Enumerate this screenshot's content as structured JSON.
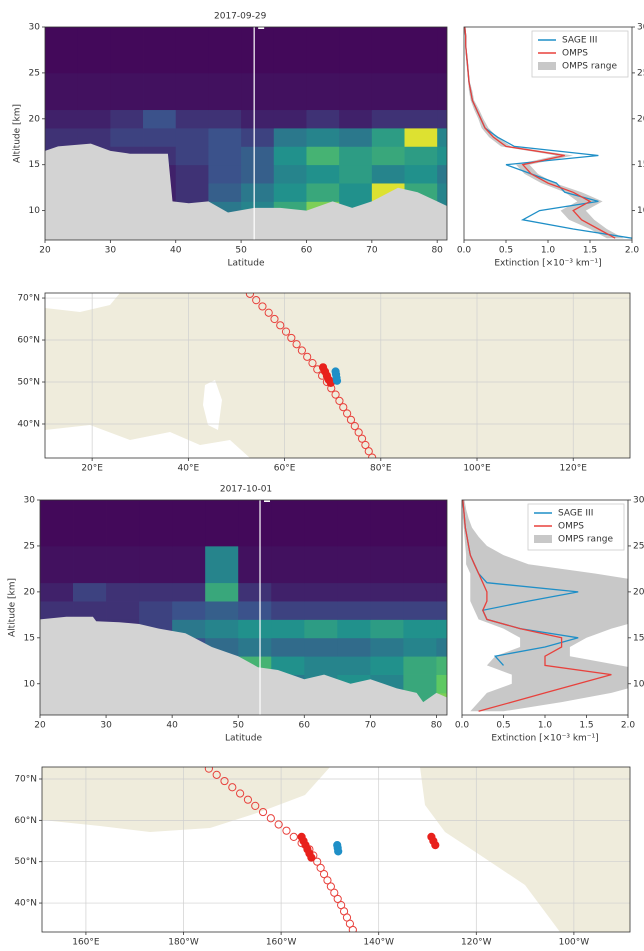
{
  "chart_data": [
    {
      "type": "heatmap",
      "title": "2017-09-29",
      "xlabel": "Latitude",
      "ylabel": "Altitude [km]",
      "xlim": [
        20,
        81.5
      ],
      "ylim": [
        6.8,
        30
      ],
      "xticks": [
        20,
        30,
        40,
        50,
        60,
        70,
        80
      ],
      "yticks": [
        10,
        15,
        20,
        25,
        30
      ],
      "colormap": "viridis",
      "zlim": [
        0,
        2
      ],
      "x_edges": [
        20,
        25,
        30,
        35,
        40,
        45,
        50,
        55,
        60,
        65,
        70,
        75,
        80,
        81.5
      ],
      "y_edges": [
        7,
        9,
        11,
        13,
        15,
        17,
        19,
        21,
        25,
        30
      ],
      "z": [
        [
          0.2,
          0.2,
          0.2,
          0.2,
          0.2,
          0.2,
          0.3,
          0.6,
          0.8,
          0.8,
          1.0,
          0.8,
          0.6
        ],
        [
          0.2,
          0.2,
          0.2,
          0.2,
          0.3,
          0.8,
          0.9,
          1.2,
          1.6,
          1.0,
          1.3,
          1.0,
          0.9
        ],
        [
          0.2,
          0.2,
          0.2,
          0.2,
          0.3,
          0.6,
          0.8,
          1.0,
          1.2,
          1.0,
          1.9,
          1.2,
          0.9
        ],
        [
          0.2,
          0.2,
          0.2,
          0.2,
          0.3,
          0.5,
          0.6,
          0.9,
          1.0,
          1.1,
          0.9,
          1.0,
          0.8
        ],
        [
          0.3,
          0.3,
          0.3,
          0.3,
          0.4,
          0.5,
          0.6,
          1.0,
          1.3,
          1.1,
          1.2,
          1.1,
          1.0
        ],
        [
          0.3,
          0.3,
          0.4,
          0.4,
          0.4,
          0.5,
          0.4,
          0.8,
          0.9,
          0.8,
          1.1,
          1.9,
          0.9
        ],
        [
          0.2,
          0.2,
          0.3,
          0.5,
          0.3,
          0.3,
          0.2,
          0.2,
          0.3,
          0.2,
          0.3,
          0.3,
          0.3
        ],
        [
          0.1,
          0.1,
          0.1,
          0.1,
          0.1,
          0.1,
          0.1,
          0.1,
          0.1,
          0.1,
          0.1,
          0.1,
          0.1
        ],
        [
          0.05,
          0.05,
          0.05,
          0.05,
          0.05,
          0.05,
          0.05,
          0.05,
          0.05,
          0.05,
          0.05,
          0.05,
          0.05
        ]
      ],
      "surface": {
        "color": "#d3d3d3",
        "lat": [
          20,
          22,
          27,
          30,
          33,
          38.8,
          39.5,
          42,
          45,
          48,
          52,
          56,
          60,
          64,
          67,
          70,
          74,
          77,
          80,
          81.5
        ],
        "alt": [
          16.5,
          17,
          17.3,
          16.5,
          16.2,
          16.2,
          11,
          10.8,
          11,
          9.8,
          10.3,
          10.3,
          10,
          11,
          10.3,
          11,
          12.5,
          12,
          11,
          10.5
        ]
      },
      "track_latitude": 52,
      "track_color": "#ffffff"
    },
    {
      "type": "profile",
      "xlabel": "Extinction [×10⁻³ km⁻¹]",
      "y_axis_side": "right",
      "legend": "upper right",
      "xlim": [
        0,
        2
      ],
      "ylim": [
        6.8,
        30
      ],
      "xticks": [
        {
          "value": 0,
          "label": "0.0"
        },
        0.5,
        {
          "value": 1,
          "label": "1.0"
        },
        1.5,
        {
          "value": 2,
          "label": "2.0"
        }
      ],
      "yticks": [
        10,
        15,
        20,
        25,
        30
      ],
      "altitude": [
        7,
        8,
        9,
        10,
        11,
        12,
        13,
        14,
        15,
        16,
        17,
        18,
        19,
        20,
        21,
        22,
        23,
        24,
        25,
        26,
        27,
        28,
        29,
        30
      ],
      "range": {
        "name": "OMPS range",
        "color": "#c8c8c8",
        "lower": [
          1.7,
          1.5,
          1.25,
          1.15,
          1.35,
          1.2,
          0.92,
          0.72,
          0.62,
          1.1,
          0.44,
          0.3,
          0.21,
          0.17,
          0.12,
          0.08,
          0.06,
          0.05,
          0.04,
          0.03,
          0.02,
          0.015,
          0.015,
          0.005
        ],
        "upper": [
          1.9,
          1.7,
          1.55,
          1.45,
          1.65,
          1.4,
          1.08,
          0.88,
          0.78,
          1.3,
          0.56,
          0.4,
          0.29,
          0.23,
          0.18,
          0.12,
          0.1,
          0.07,
          0.06,
          0.05,
          0.04,
          0.025,
          0.025,
          0.015
        ]
      },
      "series": [
        {
          "name": "SAGE III",
          "color": "#1f8fc7",
          "values": [
            2.0,
            1.3,
            0.7,
            0.9,
            1.6,
            1.2,
            1.1,
            0.8,
            0.5,
            1.6,
            0.6,
            0.4,
            0.25,
            0.2,
            0.15,
            0.1,
            0.08,
            0.06,
            0.05,
            0.04,
            0.03,
            0.02,
            0.02,
            0.01
          ]
        },
        {
          "name": "OMPS",
          "color": "#e8413c",
          "values": [
            1.8,
            1.6,
            1.4,
            1.3,
            1.5,
            1.3,
            1.0,
            0.8,
            0.7,
            1.2,
            0.5,
            0.35,
            0.25,
            0.2,
            0.15,
            0.1,
            0.08,
            0.06,
            0.05,
            0.04,
            0.03,
            0.02,
            0.02,
            0.01
          ]
        }
      ]
    },
    {
      "type": "map",
      "xlim": [
        10.2,
        131.8
      ],
      "ylim": [
        31.9,
        71.2
      ],
      "grid": true,
      "xticks": [
        {
          "value": 20,
          "label": "20°E"
        },
        {
          "value": 40,
          "label": "40°E"
        },
        {
          "value": 60,
          "label": "60°E"
        },
        {
          "value": 80,
          "label": "80°E"
        },
        {
          "value": 100,
          "label": "100°E"
        },
        {
          "value": 120,
          "label": "120°E"
        }
      ],
      "yticks": [
        {
          "value": 40,
          "label": "40°N"
        },
        {
          "value": 50,
          "label": "50°N"
        },
        {
          "value": 60,
          "label": "60°N"
        },
        {
          "value": 70,
          "label": "70°N"
        }
      ],
      "series": [
        {
          "color": "#e8413c",
          "marker": "open",
          "x": [
            52.8,
            54.1,
            55.4,
            56.7,
            57.9,
            59.1,
            60.3,
            61.4,
            62.5,
            63.6,
            64.7,
            65.8,
            66.8,
            67.8,
            68.8,
            69.7,
            70.6,
            71.4,
            72.2,
            73.0,
            73.8,
            74.6,
            75.4,
            76.1,
            76.8,
            77.5,
            78.2
          ],
          "y": [
            71,
            69.5,
            68,
            66.5,
            65,
            63.5,
            62,
            60.5,
            59,
            57.5,
            56,
            54.5,
            53,
            51.5,
            50,
            48.5,
            47,
            45.5,
            44,
            42.5,
            41,
            39.5,
            38,
            36.5,
            35,
            33.5,
            32
          ]
        },
        {
          "color": "#e8211c",
          "marker": "filled",
          "x": [
            68.0,
            68.4,
            68.8,
            69.2,
            69.6
          ],
          "y": [
            53.5,
            52.5,
            51.5,
            50.5,
            49.8
          ]
        },
        {
          "color": "#1f8fc7",
          "marker": "filled",
          "x": [
            70.6,
            70.7,
            70.8,
            70.9
          ],
          "y": [
            52.5,
            51.8,
            51.0,
            50.3
          ]
        }
      ]
    },
    {
      "type": "heatmap",
      "title": "2017-10-01",
      "xlabel": "Latitude",
      "ylabel": "Altitude [km]",
      "xlim": [
        20,
        81.6
      ],
      "ylim": [
        6.6,
        30
      ],
      "xticks": [
        20,
        30,
        40,
        50,
        60,
        70,
        80
      ],
      "yticks": [
        10,
        15,
        20,
        25,
        30
      ],
      "colormap": "viridis",
      "zlim": [
        0,
        2
      ],
      "x_edges": [
        20,
        25,
        30,
        35,
        40,
        45,
        50,
        55,
        60,
        65,
        70,
        75,
        80,
        81.6
      ],
      "y_edges": [
        7,
        9,
        11,
        13,
        15,
        17,
        19,
        21,
        25,
        30
      ],
      "z": [
        [
          0.2,
          0.2,
          0.2,
          0.3,
          0.5,
          0.8,
          0.8,
          0.8,
          0.9,
          0.8,
          0.9,
          1.2,
          1.6
        ],
        [
          0.2,
          0.2,
          0.2,
          0.3,
          0.8,
          1.0,
          0.9,
          0.8,
          0.9,
          1.0,
          0.9,
          1.2,
          1.5
        ],
        [
          0.2,
          0.2,
          0.2,
          0.3,
          1.2,
          1.9,
          1.3,
          1.0,
          0.9,
          0.9,
          1.0,
          1.2,
          1.3
        ],
        [
          0.2,
          0.2,
          0.2,
          0.3,
          0.5,
          0.7,
          0.8,
          0.7,
          0.7,
          0.7,
          0.8,
          0.9,
          0.8
        ],
        [
          0.3,
          0.3,
          0.3,
          0.4,
          0.8,
          0.9,
          1.0,
          1.0,
          1.1,
          1.0,
          1.1,
          1.0,
          1.0
        ],
        [
          0.3,
          0.3,
          0.3,
          0.4,
          0.5,
          0.6,
          0.5,
          0.4,
          0.4,
          0.4,
          0.4,
          0.4,
          0.4
        ],
        [
          0.2,
          0.4,
          0.3,
          0.3,
          0.3,
          1.2,
          0.3,
          0.2,
          0.2,
          0.2,
          0.2,
          0.2,
          0.2
        ],
        [
          0.1,
          0.1,
          0.1,
          0.1,
          0.1,
          0.9,
          0.1,
          0.1,
          0.1,
          0.1,
          0.1,
          0.1,
          0.1
        ],
        [
          0.05,
          0.05,
          0.05,
          0.05,
          0.05,
          0.05,
          0.05,
          0.05,
          0.05,
          0.05,
          0.05,
          0.05,
          0.05
        ]
      ],
      "surface": {
        "color": "#d3d3d3",
        "lat": [
          20,
          24,
          28,
          28.5,
          32,
          35,
          38,
          42,
          46,
          50,
          53,
          56,
          60,
          63,
          67,
          70,
          74,
          77,
          78,
          80,
          81.6
        ],
        "alt": [
          17,
          17.3,
          17.3,
          16.8,
          16.7,
          16.5,
          16,
          15.5,
          14,
          13,
          11.8,
          11.5,
          10.5,
          11,
          10,
          10.5,
          9.5,
          9,
          8,
          9,
          8.5
        ]
      },
      "track_latitude": 53.3,
      "track_color": "#ffffff"
    },
    {
      "type": "profile",
      "xlabel": "Extinction [×10⁻³ km⁻¹]",
      "y_axis_side": "right",
      "legend": "upper right",
      "xlim": [
        0,
        2
      ],
      "ylim": [
        6.6,
        30
      ],
      "xticks": [
        {
          "value": 0,
          "label": "0.0"
        },
        0.5,
        {
          "value": 1,
          "label": "1.0"
        },
        1.5,
        {
          "value": 2,
          "label": "2.0"
        }
      ],
      "yticks": [
        10,
        15,
        20,
        25,
        30
      ],
      "altitude": [
        7,
        8,
        9,
        10,
        11,
        12,
        13,
        14,
        15,
        16,
        17,
        18,
        19,
        20,
        21,
        22,
        23,
        24,
        25,
        26,
        27,
        28,
        29,
        30
      ],
      "range": {
        "name": "OMPS range",
        "color": "#c8c8c8",
        "lower": [
          0.1,
          0.2,
          0.3,
          0.6,
          0.6,
          0.3,
          0.4,
          0.7,
          0.7,
          0.5,
          0.2,
          0.15,
          0.1,
          0.1,
          0.1,
          0.1,
          0.05,
          0.05,
          0.04,
          0.03,
          0.02,
          0.01,
          0.01,
          0.005
        ],
        "upper": [
          0.5,
          1.2,
          1.8,
          2.2,
          2.5,
          1.9,
          1.3,
          1.3,
          1.5,
          1.8,
          2.2,
          2.3,
          2.5,
          2.3,
          2.3,
          1.6,
          0.8,
          0.5,
          0.3,
          0.2,
          0.12,
          0.08,
          0.05,
          0.03
        ]
      },
      "series": [
        {
          "name": "SAGE III",
          "color": "#1f8fc7",
          "values": [
            null,
            null,
            null,
            null,
            null,
            0.5,
            0.4,
            1.0,
            1.4,
            0.7,
            0.3,
            0.25,
            0.8,
            1.4,
            0.3,
            0.2,
            0.15,
            0.1,
            0.08,
            0.06,
            0.04,
            0.03,
            0.02,
            0.01
          ]
        },
        {
          "name": "OMPS",
          "color": "#e8413c",
          "values": [
            0.2,
            0.6,
            1.0,
            1.4,
            1.8,
            1.0,
            1.0,
            1.2,
            1.2,
            0.7,
            0.3,
            0.25,
            0.3,
            0.3,
            0.25,
            0.2,
            0.15,
            0.1,
            0.08,
            0.06,
            0.04,
            0.03,
            0.02,
            0.01
          ]
        }
      ]
    },
    {
      "type": "map",
      "xlim": [
        151,
        271.5
      ],
      "ylim": [
        33,
        72.9
      ],
      "grid": true,
      "xticks": [
        {
          "value": 160,
          "label": "160°E"
        },
        {
          "value": 180,
          "label": "180°W"
        },
        {
          "value": 200,
          "label": "160°W"
        },
        {
          "value": 220,
          "label": "140°W"
        },
        {
          "value": 240,
          "label": "120°W"
        },
        {
          "value": 260,
          "label": "100°W"
        }
      ],
      "yticks": [
        {
          "value": 40,
          "label": "40°N"
        },
        {
          "value": 50,
          "label": "50°N"
        },
        {
          "value": 60,
          "label": "60°N"
        },
        {
          "value": 70,
          "label": "70°N"
        }
      ],
      "series": [
        {
          "color": "#e8413c",
          "marker": "open",
          "x": [
            185.2,
            186.8,
            188.4,
            190.0,
            191.6,
            193.2,
            194.7,
            196.3,
            197.9,
            199.5,
            201.1,
            202.6,
            204.2,
            205.8,
            206.6,
            207.4,
            208.1,
            208.8,
            209.5,
            210.2,
            210.9,
            211.6,
            212.3,
            212.9,
            213.5,
            214.1,
            214.7
          ],
          "y": [
            72.5,
            71,
            69.5,
            68,
            66.5,
            65,
            63.5,
            62,
            60.5,
            59,
            57.5,
            56,
            54.5,
            53,
            51.5,
            50,
            48.5,
            47,
            45.5,
            44,
            42.5,
            41,
            39.5,
            38,
            36.5,
            35,
            33.5
          ]
        },
        {
          "color": "#e8211c",
          "marker": "filled",
          "x": [
            204.2,
            204.6,
            205.0,
            205.4,
            205.8,
            206.2
          ],
          "y": [
            56,
            55,
            54,
            53,
            52,
            51
          ]
        },
        {
          "color": "#1f8fc7",
          "marker": "filled",
          "x": [
            211.5,
            211.6,
            211.7
          ],
          "y": [
            54,
            53.3,
            52.5
          ]
        },
        {
          "color": "#e8211c",
          "marker": "filled",
          "x": [
            230.8,
            231.2,
            231.6
          ],
          "y": [
            56,
            55,
            54
          ]
        }
      ]
    }
  ]
}
